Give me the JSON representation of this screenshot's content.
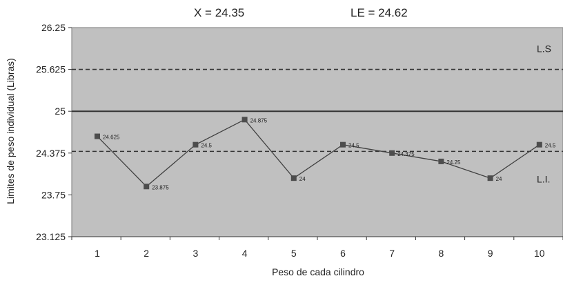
{
  "chart_data": {
    "type": "line",
    "header": {
      "mean": "X = 24.35",
      "le": "LE = 24.62"
    },
    "xlabel": "Peso de cada cilindro",
    "ylabel": "Limites de peso individual (Libras)",
    "categories": [
      "1",
      "2",
      "3",
      "4",
      "5",
      "6",
      "7",
      "8",
      "9",
      "10"
    ],
    "series": [
      {
        "values": [
          24.625,
          23.875,
          24.5,
          24.875,
          24.0,
          24.5,
          24.375,
          24.25,
          24.0,
          24.5
        ],
        "labels": [
          "24.625",
          "23.875",
          "24.5",
          "24.875",
          "24",
          "24.5",
          "24.375",
          "24.25",
          "24",
          "24.5"
        ]
      }
    ],
    "yticks": [
      "23.125",
      "23.75",
      "24.375",
      "25",
      "25.625",
      "26.25"
    ],
    "ylim": [
      23.125,
      26.25
    ],
    "reference_lines": [
      {
        "value": 25.625,
        "style": "dashed",
        "label": "L.S"
      },
      {
        "value": 25.0,
        "style": "solid",
        "label": ""
      },
      {
        "value": 24.4,
        "style": "dashed",
        "label": "L.I."
      }
    ],
    "colors": {
      "plot_background": "#c0c0c0",
      "line": "#404040",
      "marker": "#4d4d4d",
      "reference": "#333333",
      "text": "#222222"
    },
    "grid": false
  }
}
